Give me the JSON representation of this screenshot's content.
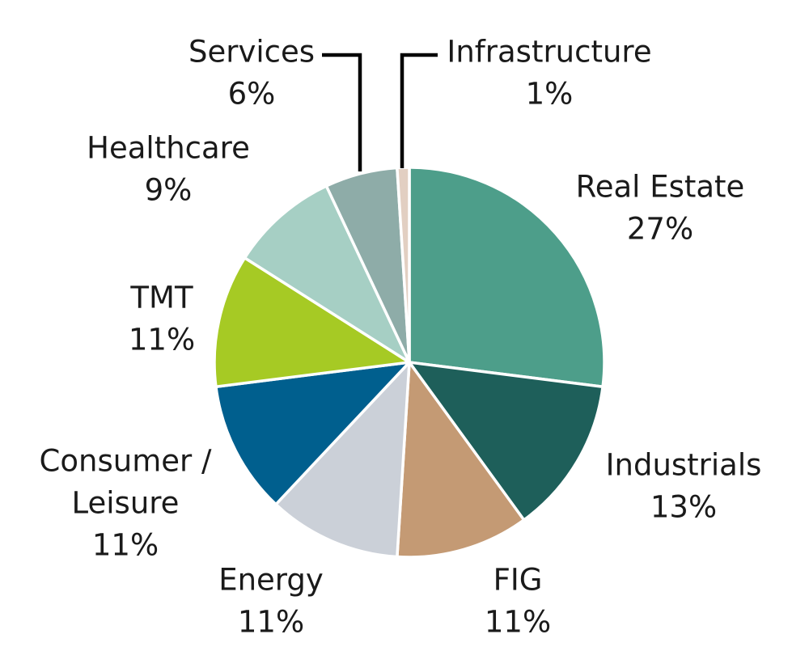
{
  "chart_data": {
    "type": "pie",
    "title": "",
    "start": "12 o'clock",
    "direction": "clockwise",
    "slices": [
      {
        "name": "Real Estate",
        "line1": "Real Estate",
        "line2": "",
        "value": 27,
        "value_label": "27%",
        "color": "#4d9e8a"
      },
      {
        "name": "Industrials",
        "line1": "Industrials",
        "line2": "",
        "value": 13,
        "value_label": "13%",
        "color": "#1e5f5a"
      },
      {
        "name": "FIG",
        "line1": "FIG",
        "line2": "",
        "value": 11,
        "value_label": "11%",
        "color": "#c49a74"
      },
      {
        "name": "Energy",
        "line1": "Energy",
        "line2": "",
        "value": 11,
        "value_label": "11%",
        "color": "#cbd0d8"
      },
      {
        "name": "Consumer / Leisure",
        "line1": "Consumer /",
        "line2": "Leisure",
        "value": 11,
        "value_label": "11%",
        "color": "#005f8e"
      },
      {
        "name": "TMT",
        "line1": "TMT",
        "line2": "",
        "value": 11,
        "value_label": "11%",
        "color": "#a6ca24"
      },
      {
        "name": "Healthcare",
        "line1": "Healthcare",
        "line2": "",
        "value": 9,
        "value_label": "9%",
        "color": "#a6cfc4"
      },
      {
        "name": "Services",
        "line1": "Services",
        "line2": "",
        "value": 6,
        "value_label": "6%",
        "color": "#8eaca8"
      },
      {
        "name": "Infrastructure",
        "line1": "Infrastructure",
        "line2": "",
        "value": 1,
        "value_label": "1%",
        "color": "#e2cfc2"
      }
    ]
  }
}
